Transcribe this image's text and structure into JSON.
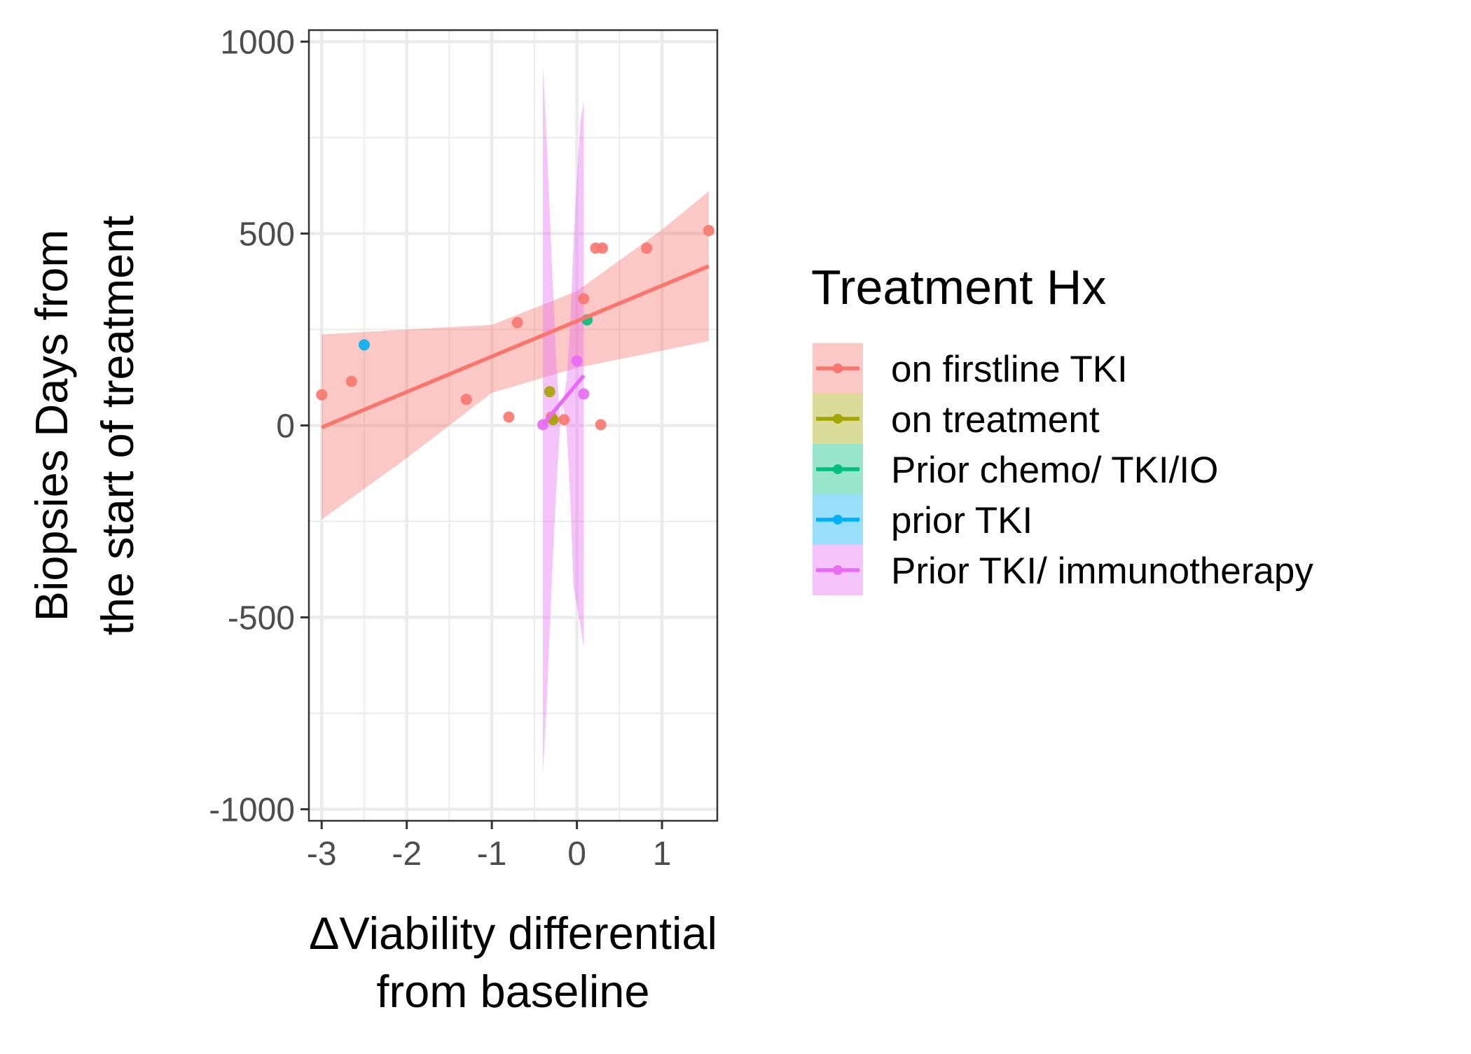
{
  "chart_data": {
    "type": "scatter",
    "xlabel": [
      "ΔViability differential",
      "from baseline"
    ],
    "ylabel": [
      "Biopsies Days from",
      "the start of treatment"
    ],
    "xlim": [
      -3.15,
      1.65
    ],
    "ylim": [
      -1030,
      1030
    ],
    "x_ticks": [
      -3,
      -2,
      -1,
      0,
      1
    ],
    "y_ticks": [
      -1000,
      -500,
      0,
      500,
      1000
    ],
    "grid": true,
    "legend": {
      "title": "Treatment Hx",
      "position": "right"
    },
    "series": [
      {
        "name": "on firstline TKI",
        "color": "#F8766D",
        "points": [
          {
            "x": -3.0,
            "y": 80
          },
          {
            "x": -2.65,
            "y": 115
          },
          {
            "x": -1.3,
            "y": 68
          },
          {
            "x": -0.8,
            "y": 22
          },
          {
            "x": -0.7,
            "y": 268
          },
          {
            "x": -0.3,
            "y": 22
          },
          {
            "x": -0.15,
            "y": 15
          },
          {
            "x": 0.08,
            "y": 330
          },
          {
            "x": 0.22,
            "y": 462
          },
          {
            "x": 0.3,
            "y": 462
          },
          {
            "x": 0.28,
            "y": 2
          },
          {
            "x": 0.82,
            "y": 462
          },
          {
            "x": 1.55,
            "y": 508
          }
        ],
        "fit": {
          "x": [
            -3.0,
            1.55
          ],
          "y": [
            -5,
            415
          ]
        },
        "band": {
          "x": [
            -3.0,
            -2.0,
            -1.0,
            0.0,
            1.0,
            1.55
          ],
          "lower": [
            -245,
            -85,
            85,
            150,
            195,
            220
          ],
          "upper": [
            237,
            250,
            262,
            350,
            510,
            610
          ]
        }
      },
      {
        "name": "on treatment",
        "color": "#A3A500",
        "points": [
          {
            "x": -0.32,
            "y": 88
          },
          {
            "x": -0.28,
            "y": 15
          }
        ]
      },
      {
        "name": "Prior chemo/ TKI/IO",
        "color": "#00BF7D",
        "points": [
          {
            "x": 0.12,
            "y": 275
          }
        ]
      },
      {
        "name": "prior TKI",
        "color": "#00B0F6",
        "points": [
          {
            "x": -2.5,
            "y": 210
          }
        ]
      },
      {
        "name": "Prior TKI/ immunotherapy",
        "color": "#E76BF3",
        "points": [
          {
            "x": -0.4,
            "y": 2
          },
          {
            "x": 0.0,
            "y": 168
          },
          {
            "x": 0.08,
            "y": 82
          }
        ],
        "fit": {
          "x": [
            -0.4,
            0.08
          ],
          "y": [
            2,
            130
          ]
        },
        "band": {
          "x": [
            -0.4,
            -0.35,
            -0.3,
            -0.25,
            -0.2,
            -0.16,
            -0.12,
            -0.08,
            -0.04,
            0.0,
            0.04,
            0.08
          ],
          "lower": [
            -910,
            -700,
            -430,
            -195,
            -5,
            50,
            -10,
            -180,
            -420,
            -470,
            -520,
            -580
          ],
          "upper": [
            940,
            720,
            450,
            200,
            16,
            65,
            120,
            258,
            475,
            645,
            790,
            845
          ]
        }
      }
    ]
  }
}
